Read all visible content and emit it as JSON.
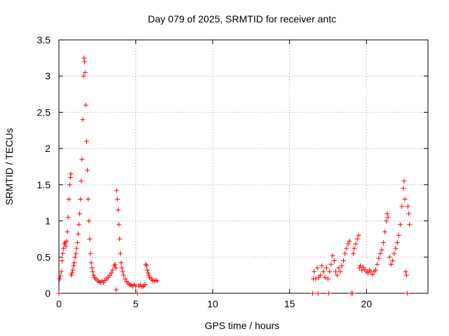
{
  "chart_data": {
    "type": "scatter",
    "title": "Day 079 of 2025, SRMTID for receiver antc",
    "xlabel": "GPS time / hours",
    "ylabel": "SRMTID / TECUs",
    "xlim": [
      0,
      24
    ],
    "ylim": [
      0,
      3.5
    ],
    "x_ticks": [
      0,
      5,
      10,
      15,
      20
    ],
    "x_tick_labels": [
      "0",
      "5",
      "10",
      "15",
      "20"
    ],
    "y_ticks": [
      0,
      0.5,
      1,
      1.5,
      2,
      2.5,
      3,
      3.5
    ],
    "y_tick_labels": [
      "0",
      "0.5",
      "1",
      "1.5",
      "2",
      "2.5",
      "3",
      "3.5"
    ],
    "grid": true,
    "marker": "plus",
    "color": "#ff0000",
    "series": [
      {
        "name": "SRMTID",
        "points": [
          [
            0.0,
            0.0
          ],
          [
            0.05,
            0.2
          ],
          [
            0.1,
            0.24
          ],
          [
            0.15,
            0.3
          ],
          [
            0.2,
            0.45
          ],
          [
            0.25,
            0.55
          ],
          [
            0.3,
            0.62
          ],
          [
            0.35,
            0.68
          ],
          [
            0.4,
            0.7
          ],
          [
            0.45,
            0.65
          ],
          [
            0.5,
            0.72
          ],
          [
            0.55,
            0.85
          ],
          [
            0.6,
            1.05
          ],
          [
            0.65,
            1.3
          ],
          [
            0.7,
            1.5
          ],
          [
            0.75,
            1.6
          ],
          [
            0.78,
            1.65
          ],
          [
            0.8,
            0.25
          ],
          [
            0.85,
            0.28
          ],
          [
            0.9,
            0.32
          ],
          [
            0.95,
            0.38
          ],
          [
            1.0,
            0.42
          ],
          [
            1.05,
            0.5
          ],
          [
            1.1,
            0.55
          ],
          [
            1.15,
            0.62
          ],
          [
            1.2,
            0.7
          ],
          [
            1.25,
            0.82
          ],
          [
            1.3,
            0.95
          ],
          [
            1.35,
            1.1
          ],
          [
            1.4,
            1.3
          ],
          [
            1.45,
            1.55
          ],
          [
            1.5,
            1.85
          ],
          [
            1.55,
            2.4
          ],
          [
            1.6,
            3.0
          ],
          [
            1.63,
            3.25
          ],
          [
            1.66,
            3.2
          ],
          [
            1.7,
            3.05
          ],
          [
            1.75,
            2.6
          ],
          [
            1.8,
            2.1
          ],
          [
            1.85,
            1.7
          ],
          [
            1.9,
            1.3
          ],
          [
            1.95,
            1.0
          ],
          [
            2.0,
            0.75
          ],
          [
            2.05,
            0.55
          ],
          [
            2.1,
            0.42
          ],
          [
            2.15,
            0.35
          ],
          [
            2.2,
            0.3
          ],
          [
            2.25,
            0.25
          ],
          [
            2.3,
            0.22
          ],
          [
            2.4,
            0.2
          ],
          [
            2.5,
            0.18
          ],
          [
            2.6,
            0.16
          ],
          [
            2.7,
            0.15
          ],
          [
            2.8,
            0.17
          ],
          [
            2.9,
            0.15
          ],
          [
            3.0,
            0.18
          ],
          [
            3.1,
            0.2
          ],
          [
            3.2,
            0.22
          ],
          [
            3.3,
            0.25
          ],
          [
            3.4,
            0.28
          ],
          [
            3.5,
            0.32
          ],
          [
            3.6,
            0.38
          ],
          [
            3.65,
            0.4
          ],
          [
            3.7,
            0.35
          ],
          [
            3.72,
            0.05
          ],
          [
            3.75,
            1.42
          ],
          [
            3.8,
            1.3
          ],
          [
            3.85,
            1.15
          ],
          [
            3.9,
            0.95
          ],
          [
            3.95,
            0.75
          ],
          [
            4.0,
            0.55
          ],
          [
            4.05,
            0.42
          ],
          [
            4.1,
            0.35
          ],
          [
            4.15,
            0.3
          ],
          [
            4.2,
            0.25
          ],
          [
            4.3,
            0.2
          ],
          [
            4.4,
            0.16
          ],
          [
            4.5,
            0.14
          ],
          [
            4.6,
            0.12
          ],
          [
            4.7,
            0.11
          ],
          [
            4.8,
            0.1
          ],
          [
            4.9,
            0.12
          ],
          [
            5.0,
            0.1
          ],
          [
            5.1,
            0.0
          ],
          [
            5.2,
            0.1
          ],
          [
            5.3,
            0.12
          ],
          [
            5.4,
            0.09
          ],
          [
            5.5,
            0.1
          ],
          [
            5.6,
            0.12
          ],
          [
            5.65,
            0.4
          ],
          [
            5.7,
            0.38
          ],
          [
            5.75,
            0.32
          ],
          [
            5.8,
            0.28
          ],
          [
            5.85,
            0.25
          ],
          [
            5.9,
            0.22
          ],
          [
            6.0,
            0.2
          ],
          [
            6.1,
            0.18
          ],
          [
            6.2,
            0.17
          ],
          [
            6.3,
            0.18
          ],
          [
            6.4,
            0.17
          ],
          [
            16.5,
            0.0
          ],
          [
            16.55,
            0.2
          ],
          [
            16.6,
            0.3
          ],
          [
            16.7,
            0.2
          ],
          [
            16.8,
            0.35
          ],
          [
            16.85,
            0.0
          ],
          [
            16.9,
            0.22
          ],
          [
            17.0,
            0.25
          ],
          [
            17.1,
            0.38
          ],
          [
            17.2,
            0.3
          ],
          [
            17.3,
            0.22
          ],
          [
            17.4,
            0.35
          ],
          [
            17.5,
            0.2
          ],
          [
            17.55,
            0.0
          ],
          [
            17.6,
            0.3
          ],
          [
            17.7,
            0.4
          ],
          [
            17.8,
            0.52
          ],
          [
            17.9,
            0.45
          ],
          [
            18.0,
            0.3
          ],
          [
            18.1,
            0.25
          ],
          [
            18.2,
            0.35
          ],
          [
            18.3,
            0.3
          ],
          [
            18.4,
            0.38
          ],
          [
            18.5,
            0.45
          ],
          [
            18.6,
            0.55
          ],
          [
            18.7,
            0.62
          ],
          [
            18.8,
            0.68
          ],
          [
            18.9,
            0.72
          ],
          [
            19.0,
            0.0
          ],
          [
            19.1,
            0.0
          ],
          [
            19.15,
            0.55
          ],
          [
            19.2,
            0.62
          ],
          [
            19.3,
            0.68
          ],
          [
            19.4,
            0.75
          ],
          [
            19.5,
            0.8
          ],
          [
            19.55,
            0.35
          ],
          [
            19.6,
            0.38
          ],
          [
            19.7,
            0.32
          ],
          [
            19.8,
            0.36
          ],
          [
            19.9,
            0.33
          ],
          [
            20.0,
            0.3
          ],
          [
            20.1,
            0.28
          ],
          [
            20.2,
            0.32
          ],
          [
            20.3,
            0.3
          ],
          [
            20.4,
            0.26
          ],
          [
            20.5,
            0.3
          ],
          [
            20.6,
            0.32
          ],
          [
            20.7,
            0.4
          ],
          [
            20.8,
            0.48
          ],
          [
            20.9,
            0.55
          ],
          [
            21.0,
            0.6
          ],
          [
            21.1,
            0.7
          ],
          [
            21.2,
            0.85
          ],
          [
            21.3,
            1.0
          ],
          [
            21.35,
            1.1
          ],
          [
            21.4,
            1.05
          ],
          [
            21.5,
            0.5
          ],
          [
            21.6,
            0.4
          ],
          [
            21.7,
            0.45
          ],
          [
            21.8,
            0.55
          ],
          [
            21.9,
            0.62
          ],
          [
            22.0,
            0.7
          ],
          [
            22.1,
            0.8
          ],
          [
            22.2,
            0.95
          ],
          [
            22.3,
            1.2
          ],
          [
            22.4,
            1.45
          ],
          [
            22.45,
            1.55
          ],
          [
            22.5,
            1.3
          ],
          [
            22.55,
            0.3
          ],
          [
            22.6,
            0.25
          ],
          [
            22.65,
            0.0
          ],
          [
            22.7,
            1.2
          ],
          [
            22.75,
            1.1
          ],
          [
            22.8,
            0.95
          ]
        ]
      }
    ]
  }
}
